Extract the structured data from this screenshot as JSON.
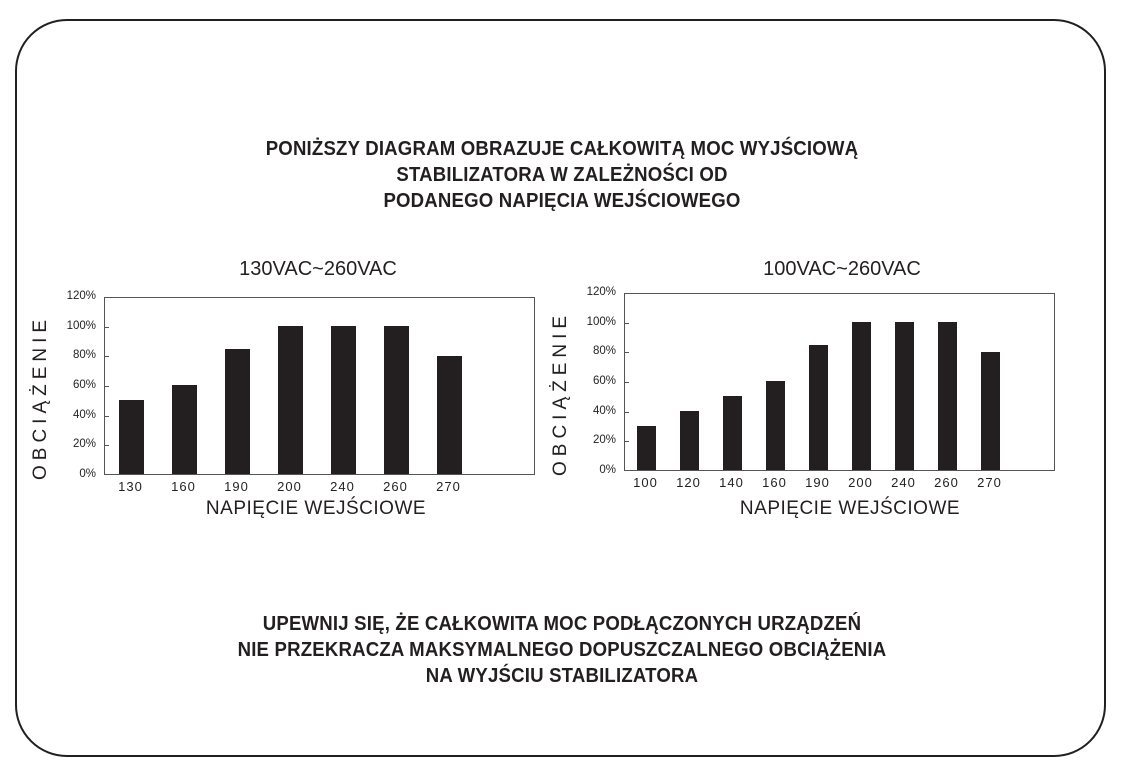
{
  "header": {
    "lines": [
      "PONIŻSZY DIAGRAM OBRAZUJE CAŁKOWITĄ MOC WYJŚCIOWĄ",
      "STABILIZATORA W ZALEŻNOŚCI OD",
      "PODANEGO NAPIĘCIA WEJŚCIOWEGO"
    ]
  },
  "footer": {
    "lines": [
      "UPEWNIJ SIĘ, ŻE CAŁKOWITA MOC PODŁĄCZONYCH URZĄDZEŃ",
      "NIE PRZEKRACZA MAKSYMALNEGO DOPUSZCZALNEGO OBCIĄŻENIA",
      "NA WYJŚCIU STABILIZATORA"
    ]
  },
  "colors": {
    "bar": "#231f20",
    "axis": "#555555",
    "text": "#231f20",
    "background": "#ffffff"
  },
  "chart_data": [
    {
      "type": "bar",
      "title": "130VAC~260VAC",
      "xlabel": "NAPIĘCIE WEJŚCIOWE",
      "ylabel": "OBCIĄŻENIE",
      "categories": [
        "130",
        "160",
        "190",
        "200",
        "240",
        "260",
        "270"
      ],
      "values": [
        50,
        60,
        85,
        100,
        100,
        100,
        80
      ],
      "unit": "%",
      "yticks": [
        "0%",
        "20%",
        "40%",
        "60%",
        "80%",
        "100%",
        "120%"
      ],
      "ylim": [
        0,
        120
      ],
      "grid": false,
      "legend": null
    },
    {
      "type": "bar",
      "title": "100VAC~260VAC",
      "xlabel": "NAPIĘCIE WEJŚCIOWE",
      "ylabel": "OBCIĄŻENIE",
      "categories": [
        "100",
        "120",
        "140",
        "160",
        "190",
        "200",
        "240",
        "260",
        "270"
      ],
      "values": [
        30,
        40,
        50,
        60,
        85,
        100,
        100,
        100,
        80
      ],
      "unit": "%",
      "yticks": [
        "0%",
        "20%",
        "40%",
        "60%",
        "80%",
        "100%",
        "120%"
      ],
      "ylim": [
        0,
        120
      ],
      "grid": false,
      "legend": null
    }
  ]
}
